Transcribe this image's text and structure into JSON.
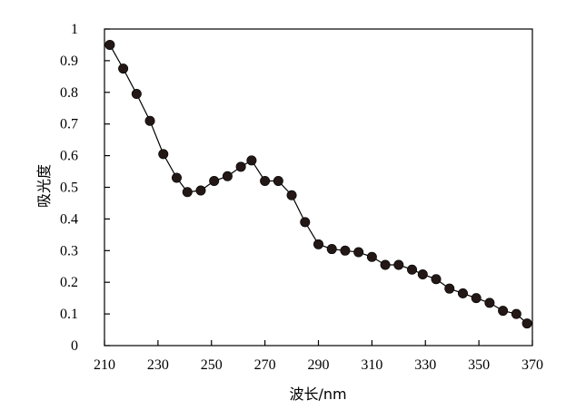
{
  "chart_data": {
    "type": "line",
    "title": "",
    "xlabel": "波长/nm",
    "ylabel": "吸光度",
    "xlim": [
      210,
      370
    ],
    "ylim": [
      0,
      1
    ],
    "xticks": [
      210,
      230,
      250,
      270,
      290,
      310,
      330,
      350,
      370
    ],
    "yticks": [
      0,
      0.1,
      0.2,
      0.3,
      0.4,
      0.5,
      0.6,
      0.7,
      0.8,
      0.9,
      1
    ],
    "grid": false,
    "legend": "none",
    "series": [
      {
        "x": [
          212,
          217,
          222,
          227,
          232,
          237,
          241,
          246,
          251,
          256,
          261,
          265,
          270,
          275,
          280,
          285,
          290,
          295,
          300,
          305,
          310,
          315,
          320,
          325,
          329,
          334,
          339,
          344,
          349,
          354,
          359,
          364,
          368
        ],
        "values": [
          0.95,
          0.875,
          0.795,
          0.71,
          0.605,
          0.53,
          0.485,
          0.49,
          0.52,
          0.535,
          0.565,
          0.585,
          0.52,
          0.52,
          0.475,
          0.39,
          0.32,
          0.305,
          0.3,
          0.295,
          0.28,
          0.255,
          0.255,
          0.24,
          0.225,
          0.21,
          0.18,
          0.165,
          0.15,
          0.135,
          0.11,
          0.1,
          0.07
        ]
      }
    ]
  },
  "colors": {
    "line": "#000000",
    "marker": "#231816",
    "axis": "#000000"
  }
}
